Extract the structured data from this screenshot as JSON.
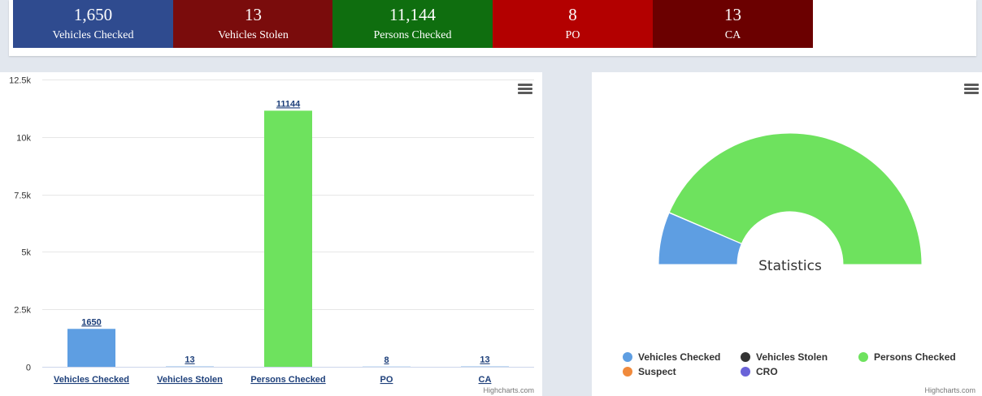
{
  "summary": {
    "tiles": [
      {
        "value": "1,650",
        "label": "Vehicles Checked",
        "color": "#2f4b8f"
      },
      {
        "value": "13",
        "label": "Vehicles Stolen",
        "color": "#7a0c0c"
      },
      {
        "value": "11,144",
        "label": "Persons Checked",
        "color": "#0f6e0f"
      },
      {
        "value": "8",
        "label": "PO",
        "color": "#b30000"
      },
      {
        "value": "13",
        "label": "CA",
        "color": "#6b0000"
      }
    ]
  },
  "bar_panel": {
    "menu_icon": "hamburger-menu-icon",
    "credits": "Highcharts.com"
  },
  "pie_panel": {
    "menu_icon": "hamburger-menu-icon",
    "credits": "Highcharts.com"
  },
  "chart_data": [
    {
      "type": "bar",
      "title": "",
      "xlabel": "",
      "ylabel": "",
      "categories": [
        "Vehicles Checked",
        "Vehicles Stolen",
        "Persons Checked",
        "PO",
        "CA"
      ],
      "values": [
        1650,
        13,
        11144,
        8,
        13
      ],
      "data_labels": [
        "1650",
        "13",
        "11144",
        "8",
        "13"
      ],
      "colors": [
        "#5e9ee2",
        "#5e9ee2",
        "#6ee25e",
        "#5e9ee2",
        "#5e9ee2"
      ],
      "ylim": [
        0,
        12500
      ],
      "yticks": [
        0,
        2500,
        5000,
        7500,
        10000,
        12500
      ],
      "ytick_labels": [
        "0",
        "2.5k",
        "5k",
        "7.5k",
        "10k",
        "12.5k"
      ],
      "grid": true,
      "legend": false
    },
    {
      "type": "pie",
      "variant": "semicircle-donut",
      "title": "Statistics",
      "slices": [
        {
          "name": "Vehicles Checked",
          "value": 1650,
          "color": "#5e9ee2"
        },
        {
          "name": "Vehicles Stolen",
          "value": 13,
          "color": "#333333"
        },
        {
          "name": "Persons Checked",
          "value": 11144,
          "color": "#6ee25e"
        },
        {
          "name": "Suspect",
          "value": 0,
          "color": "#f08a3c"
        },
        {
          "name": "CRO",
          "value": 0,
          "color": "#6a63d8"
        }
      ],
      "legend": [
        "Vehicles Checked",
        "Vehicles Stolen",
        "Persons Checked",
        "Suspect",
        "CRO"
      ],
      "legend_position": "bottom"
    }
  ]
}
